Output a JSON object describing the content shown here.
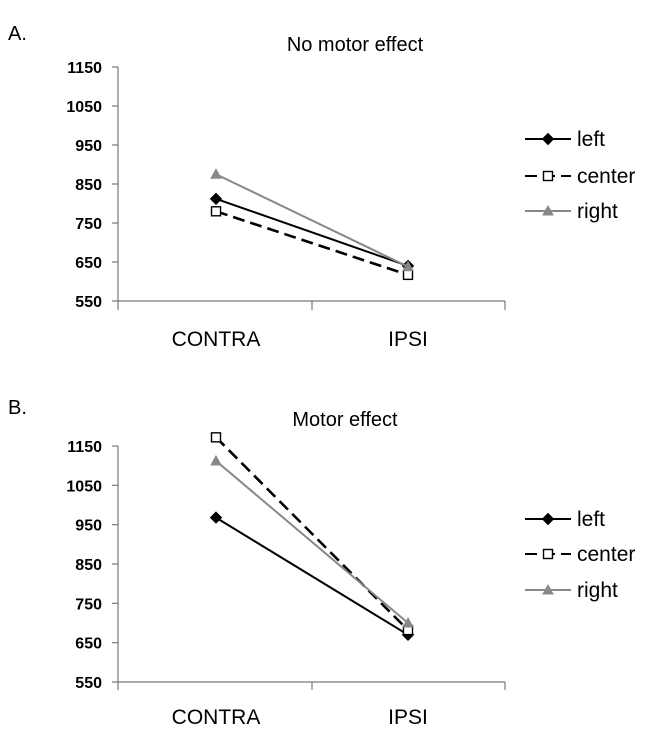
{
  "chart_data": [
    {
      "panel_label": "A.",
      "type": "line",
      "title": "No motor effect",
      "categories": [
        "CONTRA",
        "IPSI"
      ],
      "y_ticks": [
        550,
        650,
        750,
        850,
        950,
        1050,
        1150
      ],
      "ylim": [
        550,
        1150
      ],
      "grid": false,
      "legend_position": "right",
      "series": [
        {
          "name": "left",
          "values": [
            812,
            640
          ],
          "marker": "filled-diamond",
          "line_style": "solid",
          "color": "#000000"
        },
        {
          "name": "center",
          "values": [
            780,
            617
          ],
          "marker": "open-square",
          "line_style": "dashed",
          "color": "#000000"
        },
        {
          "name": "right",
          "values": [
            875,
            638
          ],
          "marker": "filled-triangle",
          "line_style": "solid",
          "color": "#888888"
        }
      ]
    },
    {
      "panel_label": "B.",
      "type": "line",
      "title": "Motor effect",
      "categories": [
        "CONTRA",
        "IPSI"
      ],
      "y_ticks": [
        550,
        650,
        750,
        850,
        950,
        1050,
        1150
      ],
      "ylim": [
        550,
        1150
      ],
      "grid": false,
      "legend_position": "right",
      "series": [
        {
          "name": "left",
          "values": [
            968,
            670
          ],
          "marker": "filled-diamond",
          "line_style": "solid",
          "color": "#000000"
        },
        {
          "name": "center",
          "values": [
            1172,
            682
          ],
          "marker": "open-square",
          "line_style": "dashed",
          "color": "#000000"
        },
        {
          "name": "right",
          "values": [
            1112,
            700
          ],
          "marker": "filled-triangle",
          "line_style": "solid",
          "color": "#888888"
        }
      ]
    }
  ]
}
